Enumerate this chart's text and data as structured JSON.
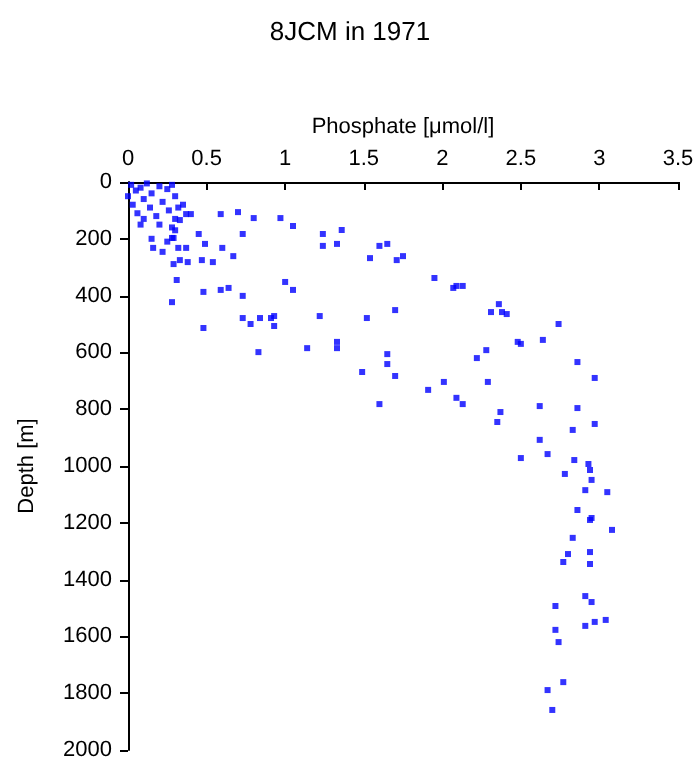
{
  "chart_data": {
    "type": "scatter",
    "title": "8JCM in 1971",
    "xlabel": "Phosphate [μmol/l]",
    "ylabel": "Depth [m]",
    "xlim": [
      0,
      3.5
    ],
    "xticks": [
      0,
      0.5,
      1,
      1.5,
      2,
      2.5,
      3,
      3.5
    ],
    "ylim": [
      2000,
      0
    ],
    "yticks": [
      0,
      200,
      400,
      600,
      800,
      1000,
      1200,
      1400,
      1600,
      1800,
      2000
    ],
    "grid": false,
    "marker": "square",
    "series": [
      {
        "color": "#0000ff",
        "x": [
          0.02,
          0.05,
          0.08,
          0.12,
          0.15,
          0.2,
          0.25,
          0.28,
          0.3,
          0.03,
          0.06,
          0.1,
          0.14,
          0.18,
          0.22,
          0.26,
          0.3,
          0.35,
          0.08,
          0.2,
          0.28,
          0.15,
          0.25,
          0.3,
          0.32,
          0.0,
          0.1,
          0.33,
          0.37,
          0.4,
          0.59,
          0.7,
          0.8,
          0.97,
          1.05,
          1.24,
          1.36,
          1.24,
          1.33,
          0.73,
          0.45,
          0.29,
          0.16,
          0.22,
          0.37,
          0.32,
          0.28,
          0.49,
          0.67,
          0.6,
          0.54,
          0.47,
          0.38,
          0.29,
          0.33,
          0.31,
          0.28,
          0.48,
          0.48,
          0.59,
          0.64,
          0.73,
          0.73,
          0.78,
          0.84,
          0.91,
          0.93,
          0.93,
          0.83,
          1.0,
          1.05,
          1.22,
          1.14,
          1.33,
          1.33,
          1.52,
          1.7,
          1.49,
          1.65,
          1.65,
          1.7,
          1.6,
          1.54,
          1.6,
          1.65,
          1.71,
          1.75,
          1.95,
          2.07,
          2.09,
          2.13,
          2.36,
          2.31,
          2.38,
          2.41,
          2.74,
          2.48,
          2.5,
          2.64,
          2.28,
          2.22,
          2.86,
          2.97,
          1.91,
          2.01,
          2.09,
          2.13,
          2.29,
          2.37,
          2.35,
          2.62,
          2.86,
          2.83,
          2.97,
          2.62,
          2.5,
          2.67,
          2.84,
          2.93,
          2.94,
          2.95,
          2.78,
          2.91,
          3.05,
          2.86,
          2.95,
          2.94,
          3.08,
          2.83,
          2.8,
          2.94,
          2.77,
          2.94,
          2.91,
          2.95,
          2.72,
          3.04,
          2.97,
          2.91,
          2.72,
          2.74,
          2.77,
          2.67,
          2.7
        ],
        "values": [
          10,
          30,
          20,
          5,
          40,
          15,
          25,
          10,
          50,
          80,
          110,
          60,
          90,
          120,
          70,
          100,
          130,
          80,
          150,
          150,
          160,
          200,
          210,
          170,
          90,
          50,
          130,
          134,
          113,
          113,
          113,
          106,
          127,
          127,
          155,
          183,
          169,
          225,
          218,
          183,
          183,
          197,
          232,
          246,
          232,
          232,
          197,
          218,
          261,
          232,
          282,
          275,
          282,
          289,
          275,
          345,
          423,
          387,
          514,
          380,
          373,
          401,
          479,
          500,
          479,
          479,
          472,
          507,
          599,
          352,
          380,
          472,
          585,
          563,
          585,
          479,
          451,
          669,
          606,
          641,
          683,
          782,
          268,
          225,
          218,
          275,
          261,
          338,
          373,
          366,
          366,
          430,
          458,
          458,
          465,
          500,
          563,
          570,
          556,
          592,
          620,
          634,
          690,
          732,
          704,
          760,
          782,
          704,
          810,
          845,
          789,
          796,
          873,
          852,
          908,
          972,
          958,
          979,
          993,
          1014,
          1049,
          1028,
          1085,
          1092,
          1155,
          1183,
          1190,
          1225,
          1253,
          1310,
          1303,
          1338,
          1345,
          1458,
          1479,
          1493,
          1542,
          1549,
          1563,
          1577,
          1620,
          1761,
          1789,
          1859
        ]
      }
    ]
  }
}
